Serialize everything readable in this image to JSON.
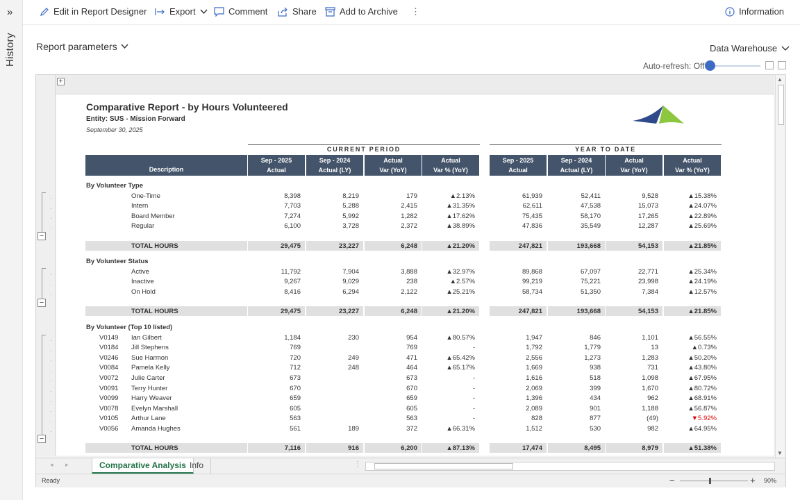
{
  "history": {
    "label": "History",
    "expand_icon": "»"
  },
  "toolbar": {
    "edit_label": "Edit in Report Designer",
    "export_label": "Export",
    "comment_label": "Comment",
    "share_label": "Share",
    "archive_label": "Add to Archive",
    "more_label": "⋮",
    "info_label": "Information"
  },
  "params": {
    "label": "Report parameters"
  },
  "datasource": {
    "label": "Data Warehouse"
  },
  "autorefresh": {
    "label": "Auto-refresh: Off"
  },
  "report": {
    "title": "Comparative Report - by Hours Volunteered",
    "entity": "Entity: SUS - Mission Forward",
    "date": "September 30, 2025",
    "current_period_label": "CURRENT PERIOD",
    "ytd_label": "YEAR TO DATE",
    "headers": {
      "description": "Description",
      "cols": [
        [
          "Sep - 2025",
          "Actual"
        ],
        [
          "Sep - 2024",
          "Actual (LY)"
        ],
        [
          "Actual",
          "Var (YoY)"
        ],
        [
          "Actual",
          "Var % (YoY)"
        ],
        [
          "Sep - 2025",
          "Actual"
        ],
        [
          "Sep - 2024",
          "Actual (LY)"
        ],
        [
          "Actual",
          "Var (YoY)"
        ],
        [
          "Actual",
          "Var % (YoY)"
        ]
      ]
    },
    "sections": [
      {
        "title": "By Volunteer Type",
        "rows": [
          {
            "id": "",
            "name": "One-Time",
            "v": [
              "8,398",
              "8,219",
              "179",
              "▲2.13%",
              "61,939",
              "52,411",
              "9,528",
              "▲15.38%"
            ]
          },
          {
            "id": "",
            "name": "Intern",
            "v": [
              "7,703",
              "5,288",
              "2,415",
              "▲31.35%",
              "62,611",
              "47,538",
              "15,073",
              "▲24.07%"
            ]
          },
          {
            "id": "",
            "name": "Board Member",
            "v": [
              "7,274",
              "5,992",
              "1,282",
              "▲17.62%",
              "75,435",
              "58,170",
              "17,265",
              "▲22.89%"
            ]
          },
          {
            "id": "",
            "name": "Regular",
            "v": [
              "6,100",
              "3,728",
              "2,372",
              "▲38.89%",
              "47,836",
              "35,549",
              "12,287",
              "▲25.69%"
            ]
          }
        ],
        "total": {
          "label": "TOTAL HOURS",
          "v": [
            "29,475",
            "23,227",
            "6,248",
            "▲21.20%",
            "247,821",
            "193,668",
            "54,153",
            "▲21.85%"
          ]
        }
      },
      {
        "title": "By Volunteer Status",
        "rows": [
          {
            "id": "",
            "name": "Active",
            "v": [
              "11,792",
              "7,904",
              "3,888",
              "▲32.97%",
              "89,868",
              "67,097",
              "22,771",
              "▲25.34%"
            ]
          },
          {
            "id": "",
            "name": "Inactive",
            "v": [
              "9,267",
              "9,029",
              "238",
              "▲2.57%",
              "99,219",
              "75,221",
              "23,998",
              "▲24.19%"
            ]
          },
          {
            "id": "",
            "name": "On Hold",
            "v": [
              "8,416",
              "6,294",
              "2,122",
              "▲25.21%",
              "58,734",
              "51,350",
              "7,384",
              "▲12.57%"
            ]
          }
        ],
        "total": {
          "label": "TOTAL HOURS",
          "v": [
            "29,475",
            "23,227",
            "6,248",
            "▲21.20%",
            "247,821",
            "193,668",
            "54,153",
            "▲21.85%"
          ]
        }
      },
      {
        "title": "By Volunteer (Top 10 listed)",
        "rows": [
          {
            "id": "V0149",
            "name": "Ian Gilbert",
            "v": [
              "1,184",
              "230",
              "954",
              "▲80.57%",
              "1,947",
              "846",
              "1,101",
              "▲56.55%"
            ]
          },
          {
            "id": "V0184",
            "name": "Jill Stephens",
            "v": [
              "769",
              "",
              "769",
              "-",
              "1,792",
              "1,779",
              "13",
              "▲0.73%"
            ]
          },
          {
            "id": "V0246",
            "name": "Sue Harmon",
            "v": [
              "720",
              "249",
              "471",
              "▲65.42%",
              "2,556",
              "1,273",
              "1,283",
              "▲50.20%"
            ]
          },
          {
            "id": "V0084",
            "name": "Pamela Kelly",
            "v": [
              "712",
              "248",
              "464",
              "▲65.17%",
              "1,669",
              "938",
              "731",
              "▲43.80%"
            ]
          },
          {
            "id": "V0072",
            "name": "Julie Carter",
            "v": [
              "673",
              "",
              "673",
              "-",
              "1,616",
              "518",
              "1,098",
              "▲67.95%"
            ]
          },
          {
            "id": "V0091",
            "name": "Terry Hunter",
            "v": [
              "670",
              "",
              "670",
              "-",
              "2,069",
              "399",
              "1,670",
              "▲80.72%"
            ]
          },
          {
            "id": "V0099",
            "name": "Harry Weaver",
            "v": [
              "659",
              "",
              "659",
              "-",
              "1,396",
              "434",
              "962",
              "▲68.91%"
            ]
          },
          {
            "id": "V0078",
            "name": "Evelyn Marshall",
            "v": [
              "605",
              "",
              "605",
              "-",
              "2,089",
              "901",
              "1,188",
              "▲56.87%"
            ]
          },
          {
            "id": "V0105",
            "name": "Arthur Lane",
            "v": [
              "563",
              "",
              "563",
              "-",
              "828",
              "877",
              "(49)",
              "▼5.92%"
            ]
          },
          {
            "id": "V0056",
            "name": "Amanda Hughes",
            "v": [
              "561",
              "189",
              "372",
              "▲66.31%",
              "1,512",
              "530",
              "982",
              "▲64.95%"
            ]
          }
        ],
        "total": {
          "label": "TOTAL HOURS",
          "v": [
            "7,116",
            "916",
            "6,200",
            "▲87.13%",
            "17,474",
            "8,495",
            "8,979",
            "▲51.38%"
          ]
        }
      }
    ]
  },
  "tabs": [
    {
      "label": "Comparative Analysis"
    },
    {
      "label": "Info"
    }
  ],
  "status": {
    "ready": "Ready",
    "zoom": "90%"
  },
  "colors": {
    "header_bg": "#44546a",
    "accent": "#217346",
    "negative": "#e60000",
    "logo_blue": "#2f4a8a",
    "logo_green": "#8dc63f"
  }
}
